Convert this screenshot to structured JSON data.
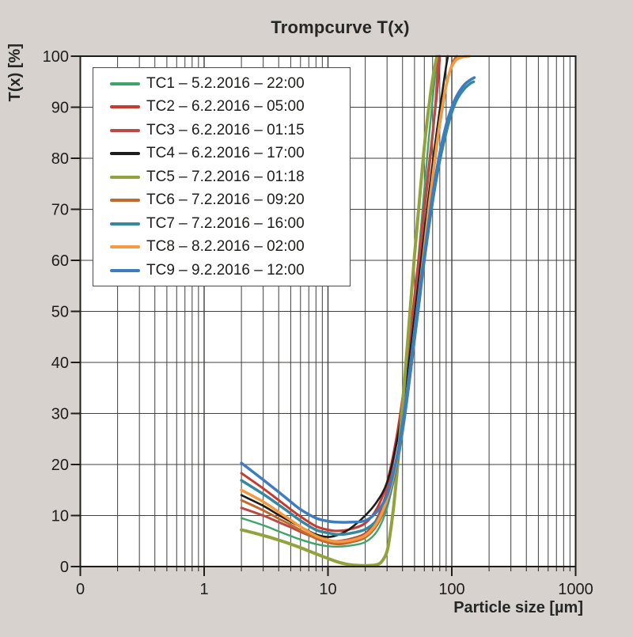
{
  "header": {
    "title": "Trompcurve T(x)"
  },
  "colors": {
    "background": "#d7d2cd",
    "plot_background": "#ffffff",
    "grid": "#3f3f3d",
    "axis": "#1d1d1b",
    "text": "#1d1d1b",
    "legend_border": "#4a4a48"
  },
  "chart_data": {
    "type": "line",
    "title": "Trompcurve T(x)",
    "xlabel": "Particle size [µm]",
    "ylabel": "T(x) [%]",
    "x_scale": "log",
    "xlim": [
      0.1,
      1000
    ],
    "ylim": [
      0,
      100
    ],
    "grid": "major-and-minor-on",
    "legend_position": "top-left",
    "x_ticks": [
      {
        "label": "0",
        "value": 0.1
      },
      {
        "label": "1",
        "value": 1
      },
      {
        "label": "10",
        "value": 10
      },
      {
        "label": "100",
        "value": 100
      },
      {
        "label": "1000",
        "value": 1000
      }
    ],
    "y_ticks": [
      0,
      10,
      20,
      30,
      40,
      50,
      60,
      70,
      80,
      90,
      100
    ],
    "series": [
      {
        "name": "TC1 – 5.2.2016 – 22:00",
        "color": "#3fa46a",
        "width": 2.4,
        "points": [
          [
            2,
            9.5
          ],
          [
            3,
            8.1
          ],
          [
            4,
            6.9
          ],
          [
            5,
            6
          ],
          [
            6,
            5.3
          ],
          [
            8,
            4.4
          ],
          [
            10,
            4
          ],
          [
            12,
            3.9
          ],
          [
            15,
            4.1
          ],
          [
            20,
            4.8
          ],
          [
            25,
            7
          ],
          [
            30,
            11.5
          ],
          [
            35,
            19
          ],
          [
            40,
            29
          ],
          [
            45,
            40
          ],
          [
            50,
            52
          ],
          [
            55,
            63.5
          ],
          [
            60,
            74
          ],
          [
            65,
            83.5
          ],
          [
            70,
            91.5
          ],
          [
            74,
            97
          ],
          [
            77,
            100
          ]
        ]
      },
      {
        "name": "TC2 – 6.2.2016 – 05:00",
        "color": "#c8392f",
        "width": 3,
        "points": [
          [
            2,
            18.3
          ],
          [
            3,
            15.3
          ],
          [
            4,
            13
          ],
          [
            5,
            11.2
          ],
          [
            6,
            9.8
          ],
          [
            8,
            7.9
          ],
          [
            10,
            7.2
          ],
          [
            12,
            7
          ],
          [
            15,
            7.3
          ],
          [
            20,
            8.5
          ],
          [
            25,
            11.5
          ],
          [
            30,
            16.5
          ],
          [
            35,
            24
          ],
          [
            40,
            33
          ],
          [
            45,
            43
          ],
          [
            50,
            53
          ],
          [
            55,
            62
          ],
          [
            60,
            70.5
          ],
          [
            65,
            78
          ],
          [
            70,
            85
          ],
          [
            75,
            91.5
          ],
          [
            78,
            96
          ],
          [
            80,
            100
          ]
        ]
      },
      {
        "name": "TC3 – 6.2.2016 – 01:15",
        "color": "#b94a45",
        "width": 3,
        "points": [
          [
            2,
            11.5
          ],
          [
            3,
            10
          ],
          [
            4,
            8.7
          ],
          [
            5,
            7.7
          ],
          [
            6,
            6.8
          ],
          [
            8,
            5.6
          ],
          [
            10,
            5.1
          ],
          [
            12,
            5
          ],
          [
            15,
            5.4
          ],
          [
            20,
            6.5
          ],
          [
            25,
            9.5
          ],
          [
            30,
            15
          ],
          [
            35,
            23
          ],
          [
            40,
            32
          ],
          [
            45,
            42
          ],
          [
            50,
            52
          ],
          [
            55,
            61
          ],
          [
            60,
            69.5
          ],
          [
            65,
            77
          ],
          [
            70,
            84.5
          ],
          [
            74,
            91
          ],
          [
            78,
            100
          ]
        ]
      },
      {
        "name": "TC4 – 6.2.2016 – 17:00",
        "color": "#1d1d1b",
        "width": 2.6,
        "points": [
          [
            2,
            14
          ],
          [
            3,
            11.9
          ],
          [
            4,
            10.1
          ],
          [
            5,
            8.8
          ],
          [
            6,
            7.8
          ],
          [
            8,
            6.3
          ],
          [
            10,
            5.8
          ],
          [
            12,
            6.2
          ],
          [
            15,
            7.4
          ],
          [
            20,
            10
          ],
          [
            25,
            12.8
          ],
          [
            30,
            16.5
          ],
          [
            35,
            23
          ],
          [
            40,
            31
          ],
          [
            45,
            40
          ],
          [
            50,
            49
          ],
          [
            55,
            57.5
          ],
          [
            60,
            65.5
          ],
          [
            65,
            72.5
          ],
          [
            70,
            79
          ],
          [
            75,
            84.5
          ],
          [
            80,
            89.5
          ],
          [
            85,
            94
          ],
          [
            90,
            98
          ],
          [
            93,
            100
          ]
        ]
      },
      {
        "name": "TC5 – 7.2.2016 – 01:18",
        "color": "#94a23d",
        "width": 4,
        "points": [
          [
            2,
            7.2
          ],
          [
            3,
            6.1
          ],
          [
            4,
            5.2
          ],
          [
            5,
            4.4
          ],
          [
            6,
            3.7
          ],
          [
            8,
            2.5
          ],
          [
            10,
            1.6
          ],
          [
            12,
            0.9
          ],
          [
            14,
            0.5
          ],
          [
            16,
            0.3
          ],
          [
            20,
            0.2
          ],
          [
            24,
            0.3
          ],
          [
            27,
            0.9
          ],
          [
            30,
            3
          ],
          [
            32,
            7
          ],
          [
            34,
            12
          ],
          [
            36,
            18
          ],
          [
            38,
            25
          ],
          [
            40,
            31.5
          ],
          [
            43,
            41
          ],
          [
            46,
            50
          ],
          [
            50,
            61
          ],
          [
            54,
            70
          ],
          [
            58,
            78.5
          ],
          [
            62,
            85.5
          ],
          [
            66,
            91
          ],
          [
            70,
            95.5
          ],
          [
            73,
            98
          ],
          [
            76,
            100
          ]
        ]
      },
      {
        "name": "TC6 – 7.2.2016 – 09:20",
        "color": "#c26a2e",
        "width": 3,
        "points": [
          [
            2,
            13
          ],
          [
            3,
            11
          ],
          [
            4,
            9.4
          ],
          [
            5,
            8.2
          ],
          [
            6,
            7.1
          ],
          [
            8,
            5.5
          ],
          [
            10,
            4.7
          ],
          [
            12,
            4.4
          ],
          [
            15,
            4.7
          ],
          [
            20,
            5.7
          ],
          [
            25,
            8.2
          ],
          [
            30,
            12.5
          ],
          [
            35,
            19
          ],
          [
            40,
            27.5
          ],
          [
            45,
            36.5
          ],
          [
            50,
            45.5
          ],
          [
            55,
            54
          ],
          [
            60,
            62
          ],
          [
            65,
            69.5
          ],
          [
            70,
            76
          ],
          [
            75,
            81.5
          ],
          [
            80,
            86.5
          ],
          [
            85,
            90.5
          ],
          [
            90,
            94
          ],
          [
            95,
            96.5
          ],
          [
            100,
            98.3
          ],
          [
            105,
            99.4
          ],
          [
            110,
            100
          ]
        ]
      },
      {
        "name": "TC7 – 7.2.2016 – 16:00",
        "color": "#34889f",
        "width": 3.5,
        "points": [
          [
            2,
            16.9
          ],
          [
            3,
            14.2
          ],
          [
            4,
            12.1
          ],
          [
            5,
            10.4
          ],
          [
            6,
            9
          ],
          [
            8,
            7.2
          ],
          [
            10,
            6.6
          ],
          [
            12,
            6.3
          ],
          [
            15,
            6.5
          ],
          [
            20,
            7.3
          ],
          [
            25,
            9.2
          ],
          [
            30,
            12.5
          ],
          [
            35,
            18.5
          ],
          [
            40,
            26.5
          ],
          [
            45,
            35.5
          ],
          [
            50,
            44.5
          ],
          [
            55,
            52.5
          ],
          [
            60,
            60
          ],
          [
            70,
            71.5
          ],
          [
            80,
            79.5
          ],
          [
            90,
            85
          ],
          [
            100,
            89
          ],
          [
            110,
            91.5
          ],
          [
            125,
            93.5
          ],
          [
            140,
            94.6
          ],
          [
            150,
            95
          ]
        ]
      },
      {
        "name": "TC8 – 8.2.2016 – 02:00",
        "color": "#f59a41",
        "width": 3.5,
        "points": [
          [
            2,
            15
          ],
          [
            3,
            12.7
          ],
          [
            4,
            10.7
          ],
          [
            5,
            9.1
          ],
          [
            6,
            7.8
          ],
          [
            8,
            6
          ],
          [
            10,
            5.2
          ],
          [
            12,
            4.9
          ],
          [
            15,
            5.1
          ],
          [
            20,
            6.1
          ],
          [
            25,
            8.7
          ],
          [
            30,
            13.2
          ],
          [
            35,
            19.5
          ],
          [
            40,
            28
          ],
          [
            45,
            37
          ],
          [
            50,
            46
          ],
          [
            55,
            54.5
          ],
          [
            60,
            62.5
          ],
          [
            65,
            70
          ],
          [
            70,
            76.5
          ],
          [
            75,
            82
          ],
          [
            80,
            87
          ],
          [
            85,
            91
          ],
          [
            90,
            94.2
          ],
          [
            95,
            96.5
          ],
          [
            100,
            98
          ],
          [
            110,
            99.4
          ],
          [
            125,
            99.9
          ],
          [
            138,
            100
          ]
        ]
      },
      {
        "name": "TC9 – 9.2.2016 – 12:00",
        "color": "#3d7dbf",
        "width": 3.5,
        "points": [
          [
            2,
            20.3
          ],
          [
            3,
            17
          ],
          [
            4,
            14.6
          ],
          [
            5,
            12.7
          ],
          [
            6,
            11.2
          ],
          [
            8,
            9.5
          ],
          [
            10,
            8.9
          ],
          [
            12,
            8.7
          ],
          [
            15,
            8.7
          ],
          [
            20,
            9
          ],
          [
            25,
            10.8
          ],
          [
            30,
            14
          ],
          [
            35,
            20
          ],
          [
            40,
            28
          ],
          [
            45,
            37
          ],
          [
            50,
            46
          ],
          [
            55,
            54
          ],
          [
            60,
            61
          ],
          [
            70,
            73
          ],
          [
            80,
            81
          ],
          [
            90,
            86.5
          ],
          [
            100,
            90
          ],
          [
            110,
            92.3
          ],
          [
            125,
            94.3
          ],
          [
            140,
            95.3
          ],
          [
            152,
            95.8
          ]
        ]
      }
    ]
  }
}
